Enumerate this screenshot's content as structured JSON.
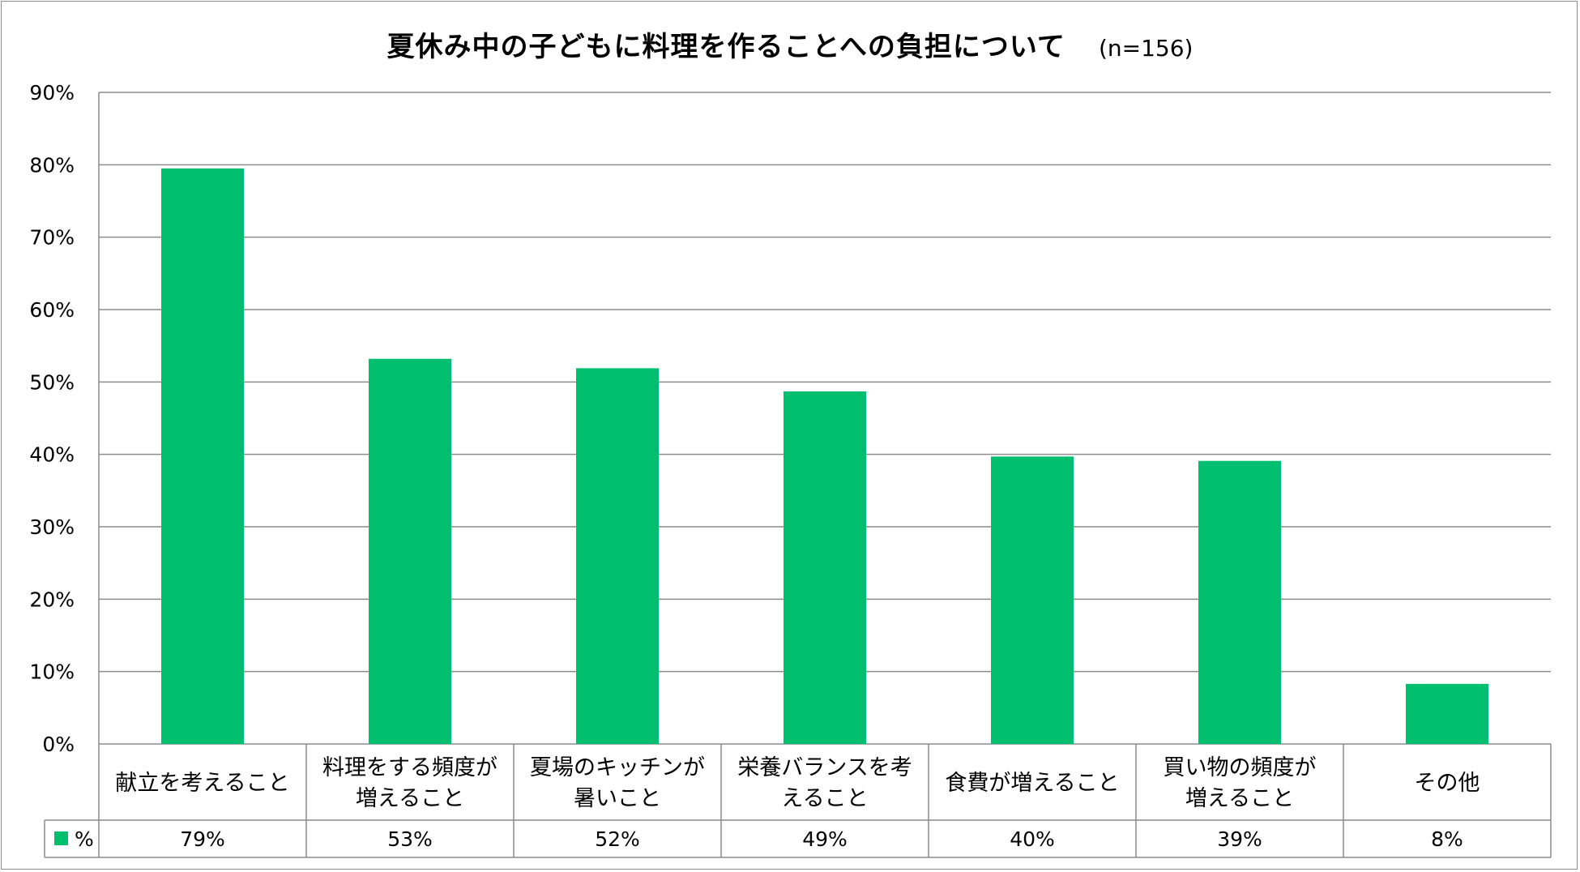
{
  "chart_data": {
    "type": "bar",
    "title": "夏休み中の子どもに料理を作ることへの負担について",
    "subtitle": "(n=156)",
    "categories": [
      [
        "献立を考えること"
      ],
      [
        "料理をする頻度が",
        "増えること"
      ],
      [
        "夏場のキッチンが",
        "暑いこと"
      ],
      [
        "栄養バランスを考",
        "えること"
      ],
      [
        "食費が増えること"
      ],
      [
        "買い物の頻度が",
        "増えること"
      ],
      [
        "その他"
      ]
    ],
    "series": [
      {
        "name": "%",
        "values": [
          79.5,
          53.2,
          51.9,
          48.7,
          39.7,
          39.1,
          8.3
        ],
        "labels": [
          "79%",
          "53%",
          "52%",
          "49%",
          "40%",
          "39%",
          "8%"
        ],
        "color": "#00bf6f"
      }
    ],
    "ylim": [
      0,
      90
    ],
    "yticks": [
      "0%",
      "10%",
      "20%",
      "30%",
      "40%",
      "50%",
      "60%",
      "70%",
      "80%",
      "90%"
    ],
    "grid": true,
    "legend": "data-table"
  }
}
